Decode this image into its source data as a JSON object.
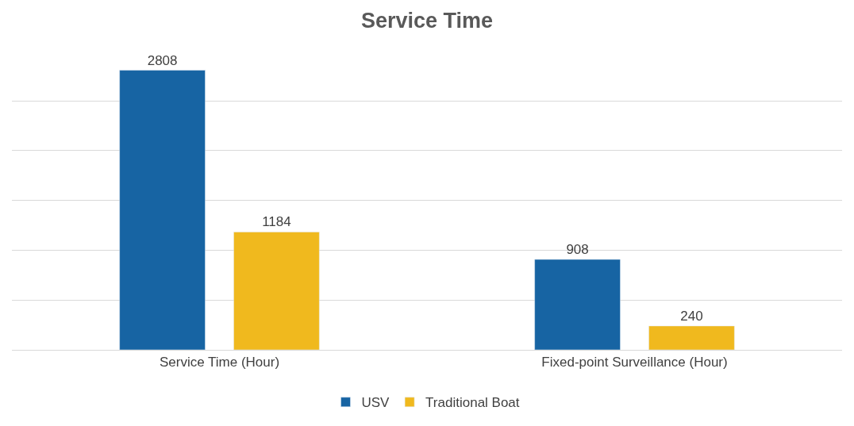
{
  "chart_data": {
    "type": "bar",
    "title": "Service Time",
    "categories": [
      "Service Time (Hour)",
      "Fixed-point Surveillance (Hour)"
    ],
    "series": [
      {
        "name": "USV",
        "color": "#1764a3",
        "values": [
          2808,
          908
        ]
      },
      {
        "name": "Traditional Boat",
        "color": "#f0b91e",
        "values": [
          1184,
          240
        ]
      }
    ],
    "tick_labels": "x",
    "grid": "y",
    "legend": "bottom",
    "data_labels": true
  }
}
